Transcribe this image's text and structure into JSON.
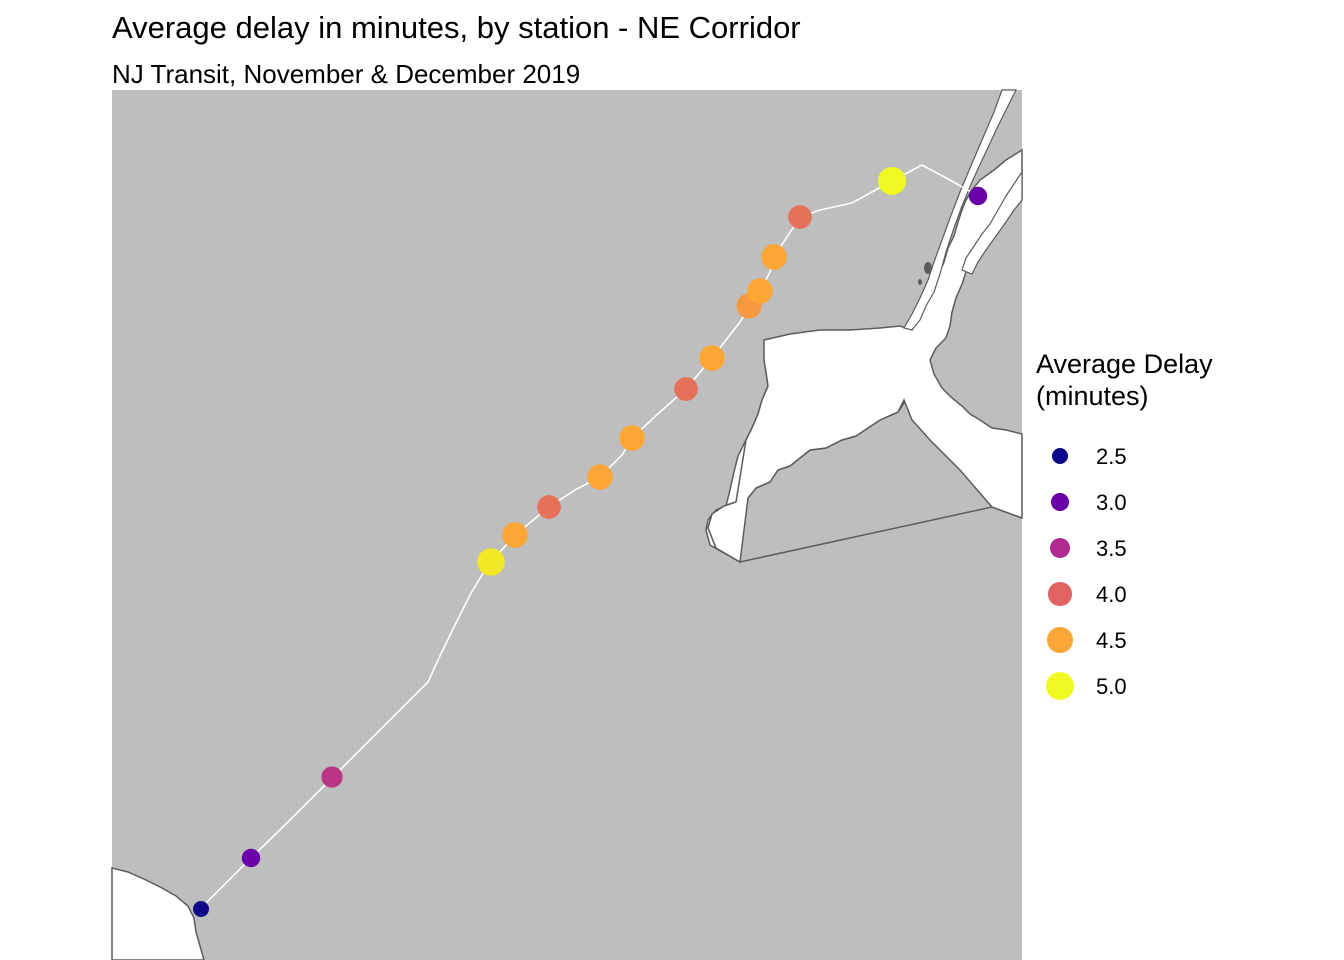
{
  "title": "Average delay in minutes, by station - NE Corridor",
  "subtitle": "NJ Transit, November & December 2019",
  "colors": {
    "land": "#bebebe",
    "water": "#ffffff",
    "coastline": "#5c5c5c",
    "rail_line": "#ffffff"
  },
  "legend": {
    "title_lines": [
      "Average Delay",
      "(minutes)"
    ],
    "items": [
      {
        "label": "2.5",
        "value": 2.5,
        "color": "#0d0887"
      },
      {
        "label": "3.0",
        "value": 3.0,
        "color": "#6a00a8"
      },
      {
        "label": "3.5",
        "value": 3.5,
        "color": "#b12a90"
      },
      {
        "label": "4.0",
        "value": 4.0,
        "color": "#e16462"
      },
      {
        "label": "4.5",
        "value": 4.5,
        "color": "#fca636"
      },
      {
        "label": "5.0",
        "value": 5.0,
        "color": "#f0f921"
      }
    ]
  },
  "stations": [
    {
      "delay": 2.5
    },
    {
      "delay": 3.0
    },
    {
      "delay": 3.6
    },
    {
      "delay": 4.9
    },
    {
      "delay": 4.5
    },
    {
      "delay": 4.1
    },
    {
      "delay": 4.5
    },
    {
      "delay": 4.5
    },
    {
      "delay": 4.1
    },
    {
      "delay": 4.5
    },
    {
      "delay": 4.4
    },
    {
      "delay": 4.5
    },
    {
      "delay": 4.5
    },
    {
      "delay": 4.1
    },
    {
      "delay": 5.0
    },
    {
      "delay": 3.0
    }
  ]
}
